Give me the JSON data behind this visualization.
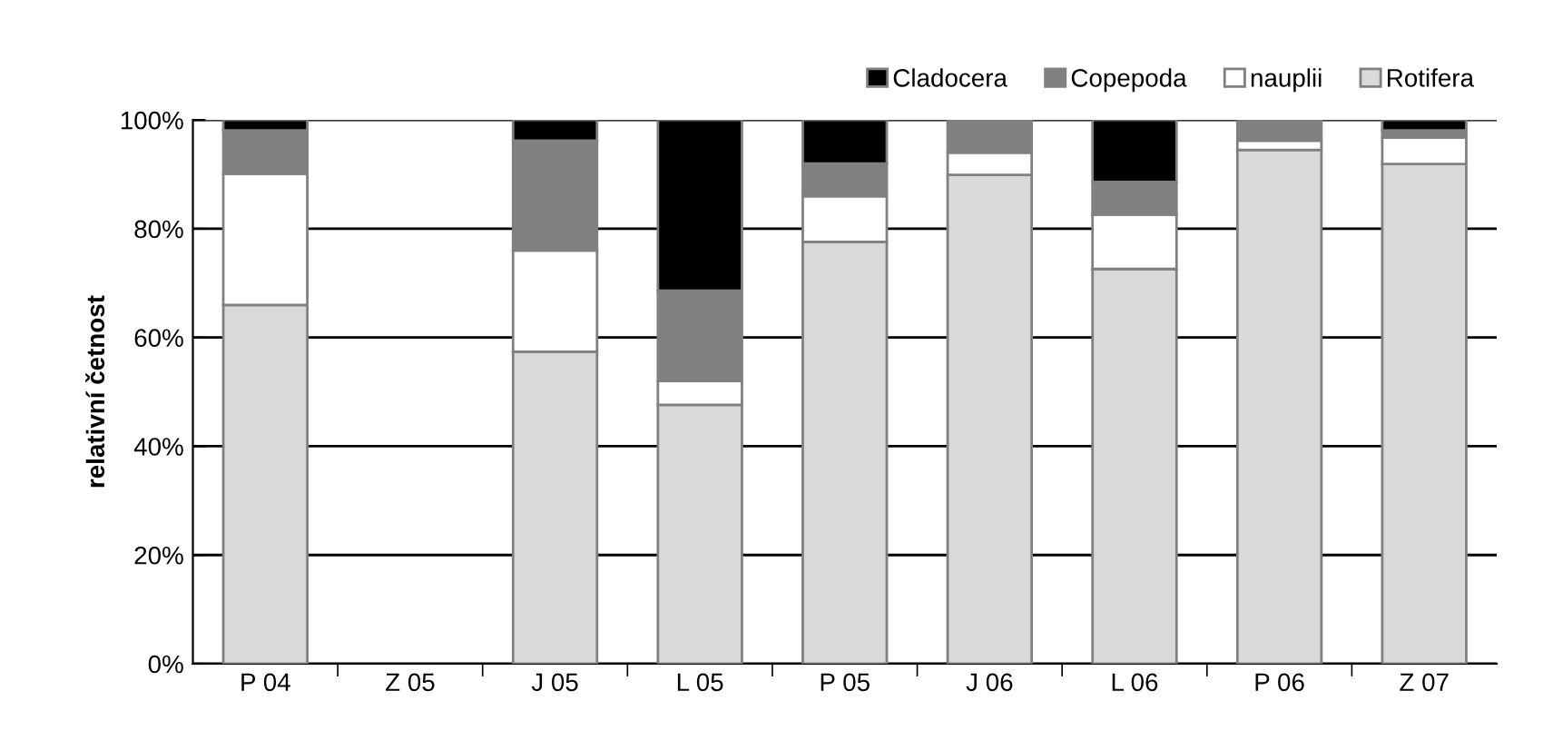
{
  "chart_data": {
    "type": "bar",
    "stacked": true,
    "ylabel": "relativní četnost",
    "categories": [
      "P 04",
      "Z 05",
      "J 05",
      "L 05",
      "P 05",
      "J 06",
      "L 06",
      "P 06",
      "Z 07"
    ],
    "series": [
      {
        "name": "Rotifera",
        "color": "#d9d9d9",
        "values": [
          66.0,
          null,
          57.4,
          47.6,
          77.6,
          89.9,
          72.6,
          94.5,
          91.9
        ]
      },
      {
        "name": "nauplii",
        "color": "#ffffff",
        "values": [
          24.1,
          null,
          18.6,
          4.4,
          8.4,
          4.1,
          10.0,
          1.7,
          4.9
        ]
      },
      {
        "name": "Copepoda",
        "color": "#808080",
        "values": [
          8.0,
          null,
          20.2,
          16.6,
          6.0,
          6.0,
          6.0,
          3.8,
          1.3
        ]
      },
      {
        "name": "Cladocera",
        "color": "#000000",
        "values": [
          1.9,
          null,
          3.8,
          31.4,
          8.0,
          0,
          11.4,
          0,
          1.9
        ]
      }
    ],
    "ylim": [
      0,
      100
    ],
    "yticks": [
      {
        "value": 0,
        "label": "0%"
      },
      {
        "value": 20,
        "label": "20%"
      },
      {
        "value": 40,
        "label": "40%"
      },
      {
        "value": 60,
        "label": "60%"
      },
      {
        "value": 80,
        "label": "80%"
      },
      {
        "value": 100,
        "label": "100%"
      }
    ],
    "grid": "y",
    "legend": "top right"
  }
}
